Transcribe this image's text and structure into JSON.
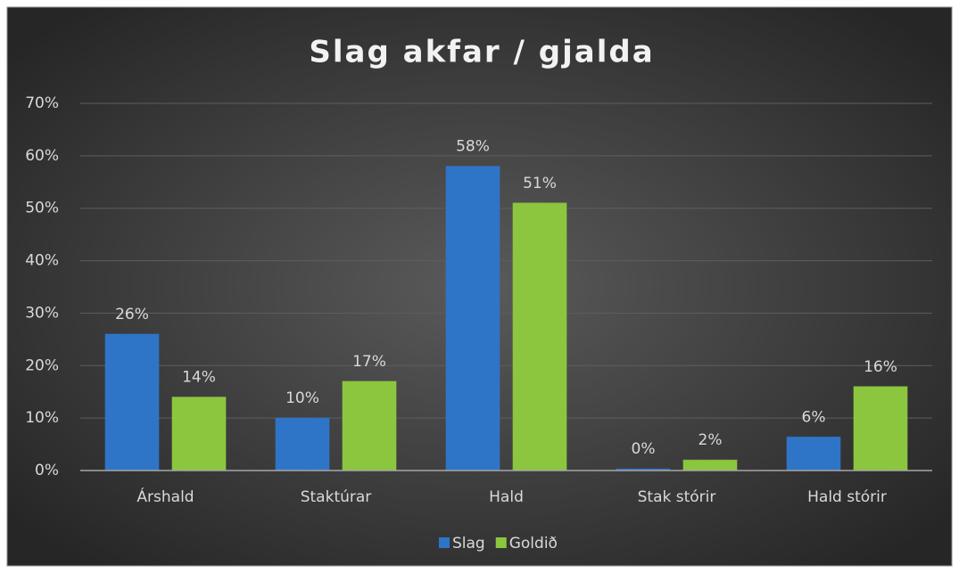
{
  "chart_data": {
    "type": "bar",
    "title": "Slag akfar / gjalda",
    "categories": [
      "Árshald",
      "Staktúrar",
      "Hald",
      "Stak stórir",
      "Hald stórir"
    ],
    "series": [
      {
        "name": "Slag",
        "color": "#2e75c8",
        "values": [
          26,
          10,
          58,
          0.3,
          6.4
        ],
        "value_labels": [
          "26%",
          "10%",
          "58%",
          "0%",
          "6%"
        ]
      },
      {
        "name": "Goldið",
        "color": "#8cc63f",
        "values": [
          14,
          17,
          51,
          2,
          16
        ],
        "value_labels": [
          "14%",
          "17%",
          "51%",
          "2%",
          "16%"
        ]
      }
    ],
    "ylim": [
      0,
      70
    ],
    "yticks": [
      {
        "value": 0,
        "label": "0%"
      },
      {
        "value": 10,
        "label": "10%"
      },
      {
        "value": 20,
        "label": "20%"
      },
      {
        "value": 30,
        "label": "30%"
      },
      {
        "value": 40,
        "label": "40%"
      },
      {
        "value": 50,
        "label": "50%"
      },
      {
        "value": 60,
        "label": "60%"
      },
      {
        "value": 70,
        "label": "70%"
      }
    ],
    "grid": true,
    "legend": "bottom"
  }
}
